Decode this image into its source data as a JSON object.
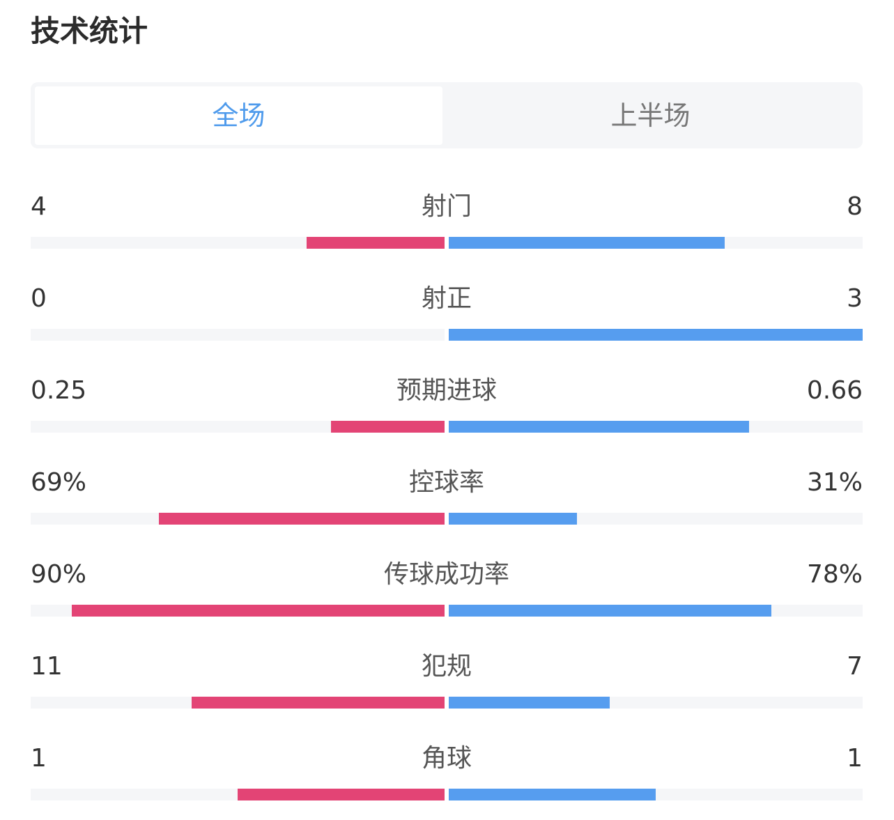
{
  "title": "技术统计",
  "tabs": [
    {
      "label": "全场",
      "active": true
    },
    {
      "label": "上半场",
      "active": false
    }
  ],
  "colors": {
    "home": "#e34475",
    "away": "#569def",
    "track": "#f5f6f8",
    "active_tab": "#4f9bec"
  },
  "stats": [
    {
      "label": "射门",
      "home": "4",
      "away": "8",
      "home_fraction": 0.333,
      "away_fraction": 0.667
    },
    {
      "label": "射正",
      "home": "0",
      "away": "3",
      "home_fraction": 0,
      "away_fraction": 1
    },
    {
      "label": "预期进球",
      "home": "0.25",
      "away": "0.66",
      "home_fraction": 0.275,
      "away_fraction": 0.725
    },
    {
      "label": "控球率",
      "home": "69%",
      "away": "31%",
      "home_fraction": 0.69,
      "away_fraction": 0.31
    },
    {
      "label": "传球成功率",
      "home": "90%",
      "away": "78%",
      "home_fraction": 0.9,
      "away_fraction": 0.78
    },
    {
      "label": "犯规",
      "home": "11",
      "away": "7",
      "home_fraction": 0.611,
      "away_fraction": 0.389
    },
    {
      "label": "角球",
      "home": "1",
      "away": "1",
      "home_fraction": 0.5,
      "away_fraction": 0.5
    }
  ]
}
